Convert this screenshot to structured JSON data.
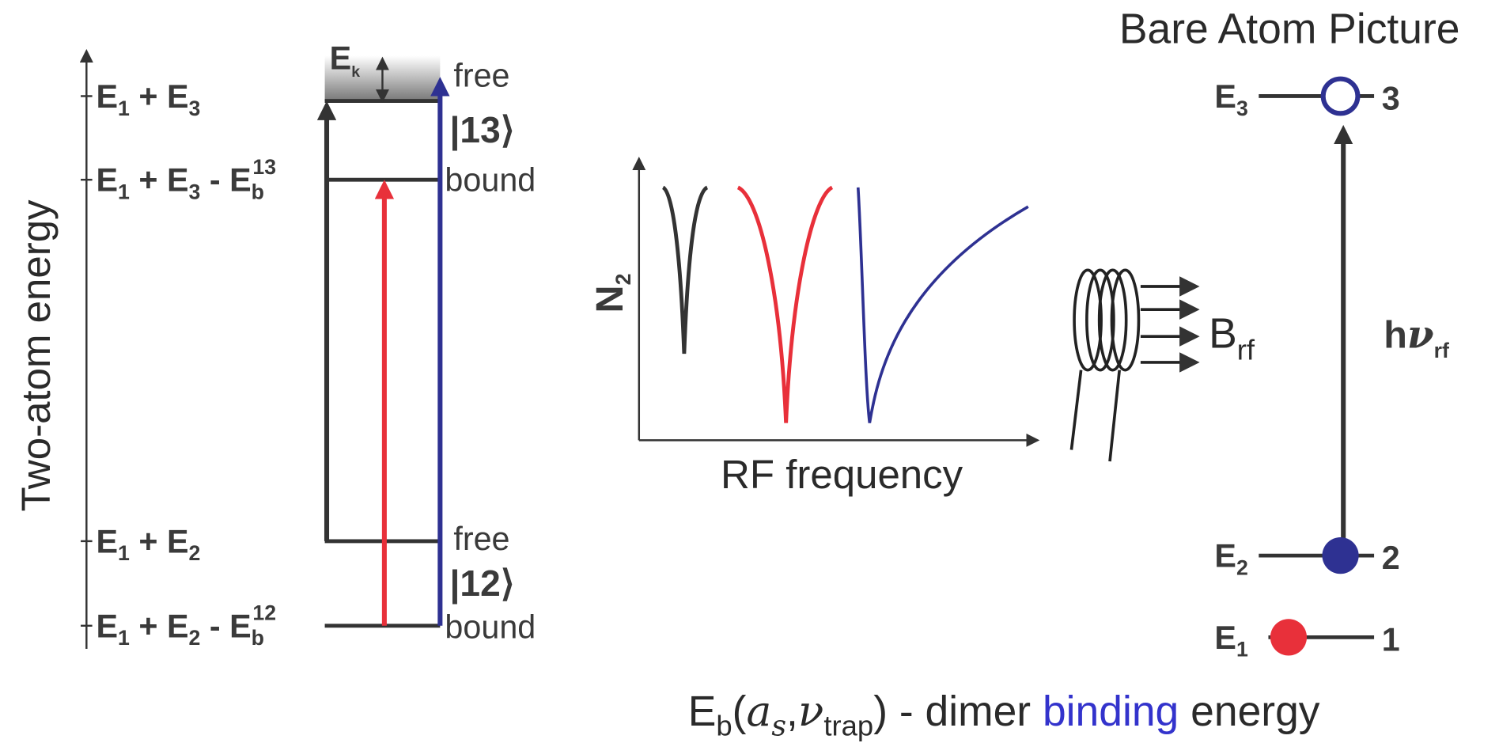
{
  "left": {
    "axis_label": "Two-atom energy",
    "levels": [
      [
        "E",
        "1",
        " + E",
        "3"
      ],
      [
        "E",
        "1",
        " + E",
        "3",
        " - E",
        "b",
        "13"
      ],
      [
        "E",
        "1",
        " + E",
        "2"
      ],
      [
        "E",
        "1",
        " + E",
        "2",
        " - E",
        "b",
        "12"
      ]
    ],
    "ek": [
      "E",
      "k"
    ],
    "states": [
      {
        "top": "free",
        "ket": "|13⟩",
        "bottom": "bound"
      },
      {
        "top": "free",
        "ket": "|12⟩",
        "bottom": "bound"
      }
    ]
  },
  "middle": {
    "y_label": [
      "N",
      "2"
    ],
    "x_label": "RF frequency",
    "field_label": [
      "B",
      "rf"
    ]
  },
  "right": {
    "title": "Bare Atom Picture",
    "levels": [
      {
        "label": [
          "E",
          "3"
        ],
        "number": "3"
      },
      {
        "label": [
          "E",
          "2"
        ],
        "number": "2"
      },
      {
        "label": [
          "E",
          "1"
        ],
        "number": "1"
      }
    ],
    "photon": [
      "h",
      "ν",
      "rf"
    ]
  },
  "caption": [
    "E",
    "b",
    "(",
    "a",
    "s",
    ",",
    "ν",
    "trap",
    ") - dimer ",
    "binding",
    " energy"
  ]
}
